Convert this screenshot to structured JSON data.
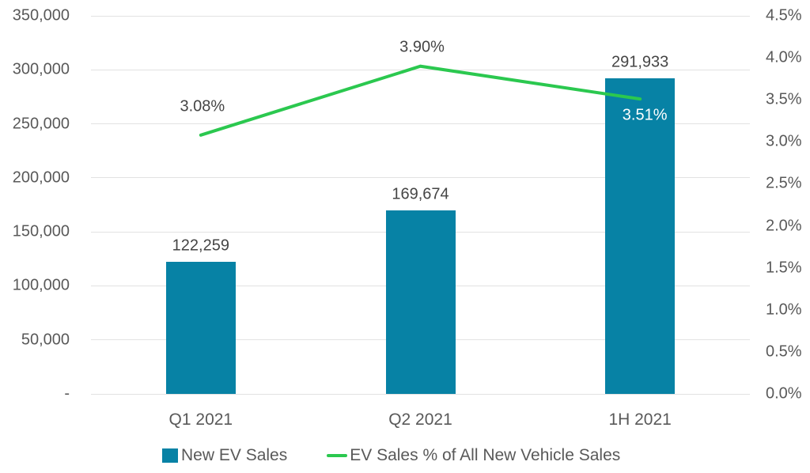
{
  "colors": {
    "bar": "#0782A5",
    "line": "#2BC84F",
    "grid": "#E2E2E2",
    "tick_text": "#595959",
    "data_label_text": "#454545",
    "inside_bar_label_text": "#FFFFFF",
    "background": "#FFFFFF"
  },
  "legend": {
    "bar_series_label": "New EV Sales",
    "line_series_label": "EV Sales % of All New Vehicle Sales"
  },
  "chart_data": {
    "type": "bar+line",
    "categories": [
      "Q1 2021",
      "Q2 2021",
      "1H 2021"
    ],
    "series": [
      {
        "name": "New EV Sales",
        "type": "bar",
        "axis": "left",
        "values": [
          122259,
          169674,
          291933
        ],
        "data_labels": [
          "122,259",
          "169,674",
          "291,933"
        ],
        "label_placement": [
          "outside-above",
          "outside-above",
          "outside-above"
        ]
      },
      {
        "name": "EV Sales % of All New Vehicle Sales",
        "type": "line",
        "axis": "right",
        "values": [
          3.08,
          3.9,
          3.51
        ],
        "data_labels": [
          "3.08%",
          "3.90%",
          "3.51%"
        ],
        "label_placement": [
          "above",
          "above",
          "inside-bar-below"
        ]
      }
    ],
    "left_axis": {
      "min": 0,
      "max": 350000,
      "step": 50000,
      "tick_labels": [
        "350,000",
        "300,000",
        "250,000",
        "200,000",
        "150,000",
        "100,000",
        "50,000",
        "-"
      ]
    },
    "right_axis": {
      "min": 0,
      "max": 4.5,
      "step": 0.5,
      "tick_labels": [
        "4.5%",
        "4.0%",
        "3.5%",
        "3.0%",
        "2.5%",
        "2.0%",
        "1.5%",
        "1.0%",
        "0.5%",
        "0.0%"
      ]
    },
    "grid": "horizontal-left-axis",
    "legend_position": "bottom",
    "title": ""
  }
}
